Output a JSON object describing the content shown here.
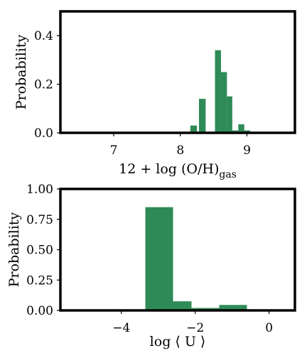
{
  "chart_data": [
    {
      "type": "bar",
      "xlabel": "12 + log (O/H)",
      "xlabel_sub": "gas",
      "ylabel": "Probability",
      "xlim": [
        6.2,
        9.72
      ],
      "ylim": [
        0,
        0.5
      ],
      "xticks": [
        7,
        8,
        9
      ],
      "xtick_labels": [
        "7",
        "8",
        "9"
      ],
      "yticks": [
        0,
        0.2,
        0.4
      ],
      "ytick_labels": [
        "0.0",
        "0.2",
        "0.4"
      ],
      "bar_color": "#2e8b57",
      "bins": [
        {
          "x0": 8.15,
          "x1": 8.25,
          "value": 0.03
        },
        {
          "x0": 8.28,
          "x1": 8.38,
          "value": 0.14
        },
        {
          "x0": 8.52,
          "x1": 8.61,
          "value": 0.34
        },
        {
          "x0": 8.61,
          "x1": 8.7,
          "value": 0.25
        },
        {
          "x0": 8.7,
          "x1": 8.78,
          "value": 0.15
        },
        {
          "x0": 8.78,
          "x1": 8.87,
          "value": 0.01
        },
        {
          "x0": 8.87,
          "x1": 8.96,
          "value": 0.035
        },
        {
          "x0": 8.96,
          "x1": 9.05,
          "value": 0.01
        }
      ]
    },
    {
      "type": "bar",
      "xlabel": "log ⟨ U ⟩",
      "ylabel": "Probability",
      "xlim": [
        -5.65,
        0.7
      ],
      "ylim": [
        0,
        1.0
      ],
      "xticks": [
        -4,
        -2,
        0
      ],
      "xtick_labels": [
        "−4",
        "−2",
        "0"
      ],
      "yticks": [
        0,
        0.25,
        0.5,
        0.75,
        1.0
      ],
      "ytick_labels": [
        "0.00",
        "0.25",
        "0.50",
        "0.75",
        "1.00"
      ],
      "bar_color": "#2e8b57",
      "bins": [
        {
          "x0": -3.35,
          "x1": -2.6,
          "value": 0.85
        },
        {
          "x0": -2.6,
          "x1": -2.1,
          "value": 0.075
        },
        {
          "x0": -2.1,
          "x1": -1.35,
          "value": 0.02
        },
        {
          "x0": -1.35,
          "x1": -0.6,
          "value": 0.045
        }
      ]
    }
  ]
}
